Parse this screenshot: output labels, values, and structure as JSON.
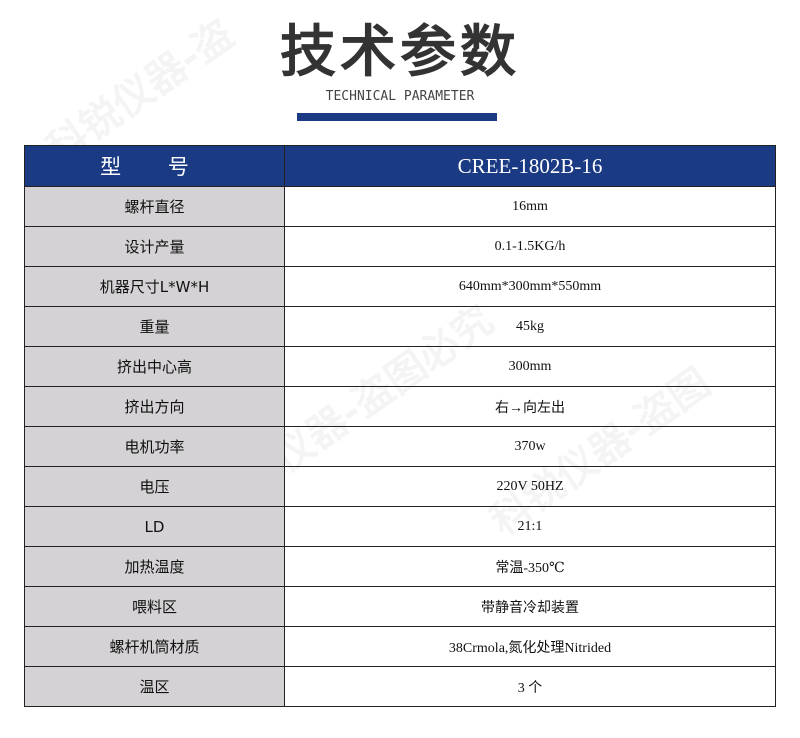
{
  "header": {
    "title": "技术参数",
    "subtitle": "TECHNICAL PARAMETER",
    "accent_color": "#1b3a84"
  },
  "watermark": "科锐仪器-盗图必究",
  "table": {
    "head": {
      "label": "型 号",
      "value": "CREE-1802B-16"
    },
    "rows": [
      {
        "label": "螺杆直径",
        "value": "16mm"
      },
      {
        "label": "设计产量",
        "value": "0.1-1.5KG/h"
      },
      {
        "label": "机器尺寸L*W*H",
        "value": "640mm*300mm*550mm"
      },
      {
        "label": "重量",
        "value": "45kg"
      },
      {
        "label": "挤出中心高",
        "value": "300mm"
      },
      {
        "label": "挤出方向",
        "value": "右→向左出"
      },
      {
        "label": "电机功率",
        "value": "370w"
      },
      {
        "label": "电压",
        "value": "220V 50HZ"
      },
      {
        "label": "LD",
        "value": "21:1"
      },
      {
        "label": "加热温度",
        "value": "常温-350℃"
      },
      {
        "label": "喂料区",
        "value": "带静音冷却装置"
      },
      {
        "label": "螺杆机筒材质",
        "value": "38Crmola,氮化处理Nitrided"
      },
      {
        "label": "温区",
        "value": "3 个"
      }
    ]
  }
}
